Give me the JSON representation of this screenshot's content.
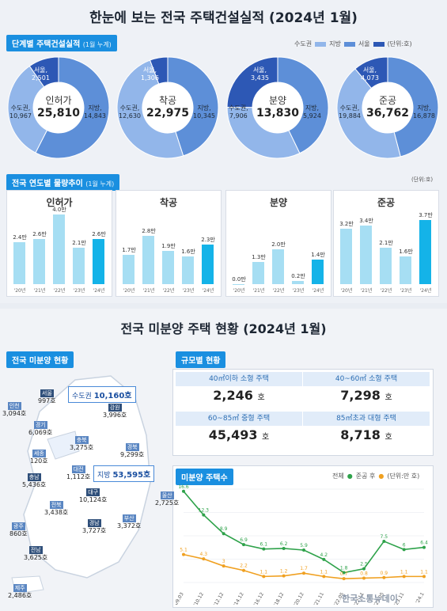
{
  "top_title": "한눈에 보는 전국 주택건설실적 (2024년 1월)",
  "section1_tag": "단계별 주택건설실적",
  "section1_sub": "(1월 누계)",
  "legend": {
    "metro": "수도권",
    "local": "지방",
    "seoul": "서울",
    "unit": "(단위:호)"
  },
  "colors": {
    "metro": "#92b6ea",
    "local": "#5d8fd8",
    "seoul": "#2d58b5"
  },
  "stages": [
    {
      "name": "인허가",
      "total": "25,810",
      "seoul_label": "서울,",
      "seoul": "2,501",
      "metro_label": "수도권,",
      "metro": "10,967",
      "local_label": "지방,",
      "local": "14,843",
      "metro_v": 10967,
      "local_v": 14843,
      "seoul_v": 2501
    },
    {
      "name": "착공",
      "total": "22,975",
      "seoul_label": "서울,",
      "seoul": "1,306",
      "metro_label": "수도권,",
      "metro": "12,630",
      "local_label": "지방,",
      "local": "10,345",
      "metro_v": 12630,
      "local_v": 10345,
      "seoul_v": 1306
    },
    {
      "name": "분양",
      "total": "13,830",
      "seoul_label": "서울,",
      "seoul": "3,435",
      "metro_label": "수도권,",
      "metro": "7,906",
      "local_label": "지방,",
      "local": "5,924",
      "metro_v": 7906,
      "local_v": 5924,
      "seoul_v": 3435
    },
    {
      "name": "준공",
      "total": "36,762",
      "seoul_label": "서울,",
      "seoul": "4,073",
      "metro_label": "수도권,",
      "metro": "19,884",
      "local_label": "지방,",
      "local": "16,878",
      "metro_v": 19884,
      "local_v": 16878,
      "seoul_v": 4073
    }
  ],
  "section2_tag": "전국 연도별 물량추이",
  "section2_sub": "(1월 누계)",
  "section2_unit": "(단위:호)",
  "chart_data": [
    {
      "type": "bar",
      "title": "인허가",
      "categories": [
        "'20년",
        "'21년",
        "'22년",
        "'23년",
        "'24년"
      ],
      "values": [
        2.4,
        2.6,
        4.0,
        2.1,
        2.6
      ],
      "labels": [
        "2.4만",
        "2.6만",
        "4.0만",
        "2.1만",
        "2.6만"
      ],
      "ylim": [
        0,
        4.2
      ]
    },
    {
      "type": "bar",
      "title": "착공",
      "categories": [
        "'20년",
        "'21년",
        "'22년",
        "'23년",
        "'24년"
      ],
      "values": [
        1.7,
        2.8,
        1.9,
        1.6,
        2.3
      ],
      "labels": [
        "1.7만",
        "2.8만",
        "1.9만",
        "1.6만",
        "2.3만"
      ],
      "ylim": [
        0,
        4.2
      ]
    },
    {
      "type": "bar",
      "title": "분양",
      "categories": [
        "'20년",
        "'21년",
        "'22년",
        "'23년",
        "'24년"
      ],
      "values": [
        0.0,
        1.3,
        2.0,
        0.2,
        1.4
      ],
      "labels": [
        "0.0만",
        "1.3만",
        "2.0만",
        "0.2만",
        "1.4만"
      ],
      "ylim": [
        0,
        4.2
      ]
    },
    {
      "type": "bar",
      "title": "준공",
      "categories": [
        "'20년",
        "'21년",
        "'22년",
        "'23년",
        "'24년"
      ],
      "values": [
        3.2,
        3.4,
        2.1,
        1.6,
        3.7
      ],
      "labels": [
        "3.2만",
        "3.4만",
        "2.1만",
        "1.6만",
        "3.7만"
      ],
      "ylim": [
        0,
        4.2
      ]
    },
    {
      "type": "line",
      "title": "미분양 주택수",
      "unit": "(단위:만 호)",
      "x": [
        "'09.03",
        "'10.12",
        "'12.12",
        "'14.12",
        "'16.12",
        "'18.12",
        "'20.12",
        "'21.11",
        "'22.05",
        "'22.11",
        "'23.05",
        "'23.11",
        "'24.1"
      ],
      "series": [
        {
          "name": "전체",
          "color": "#2ea24a",
          "values": [
            16.6,
            12.3,
            8.9,
            6.9,
            6.1,
            6.2,
            5.9,
            4.2,
            1.8,
            2.5,
            7.5,
            6.0,
            6.4
          ]
        },
        {
          "name": "준공 후",
          "color": "#f0a020",
          "values": [
            5.1,
            4.3,
            3.0,
            2.2,
            1.1,
            1.2,
            1.7,
            1.1,
            0.7,
            0.8,
            0.9,
            1.1,
            1.1
          ]
        }
      ],
      "ylim": [
        0,
        17
      ]
    }
  ],
  "bottom_title": "전국 미분양 주택 현황 (2024년 1월)",
  "nat_tag": "전국 미분양 현황",
  "metro_box": {
    "label": "수도권",
    "value": "10,160호"
  },
  "local_box": {
    "label": "지방",
    "value": "53,595호"
  },
  "regions": [
    {
      "name": "서울",
      "value": "997호"
    },
    {
      "name": "인천",
      "value": "3,094호"
    },
    {
      "name": "경기",
      "value": "6,069호"
    },
    {
      "name": "강원",
      "value": "3,996호"
    },
    {
      "name": "충북",
      "value": "3,275호"
    },
    {
      "name": "세종",
      "value": "120호"
    },
    {
      "name": "충남",
      "value": "5,436호"
    },
    {
      "name": "대전",
      "value": "1,112호"
    },
    {
      "name": "경북",
      "value": "9,299호"
    },
    {
      "name": "대구",
      "value": "10,124호"
    },
    {
      "name": "전북",
      "value": "3,438호"
    },
    {
      "name": "울산",
      "value": "2,725호"
    },
    {
      "name": "경남",
      "value": "3,727호"
    },
    {
      "name": "부산",
      "value": "3,372호"
    },
    {
      "name": "광주",
      "value": "860호"
    },
    {
      "name": "전남",
      "value": "3,625호"
    },
    {
      "name": "제주",
      "value": "2,486호"
    }
  ],
  "size_tag": "규모별 현황",
  "sizes": [
    {
      "label": "40㎡이하 소형 주택",
      "value": "2,246",
      "unit": "호"
    },
    {
      "label": "40~60㎡ 소형 주택",
      "value": "7,298",
      "unit": "호"
    },
    {
      "label": "60~85㎡ 중형 주택",
      "value": "45,493",
      "unit": "호"
    },
    {
      "label": "85㎡초과 대형 주택",
      "value": "8,718",
      "unit": "호"
    }
  ],
  "line_tag": "미분양 주택수",
  "watermark": "한국소통뉴데이"
}
